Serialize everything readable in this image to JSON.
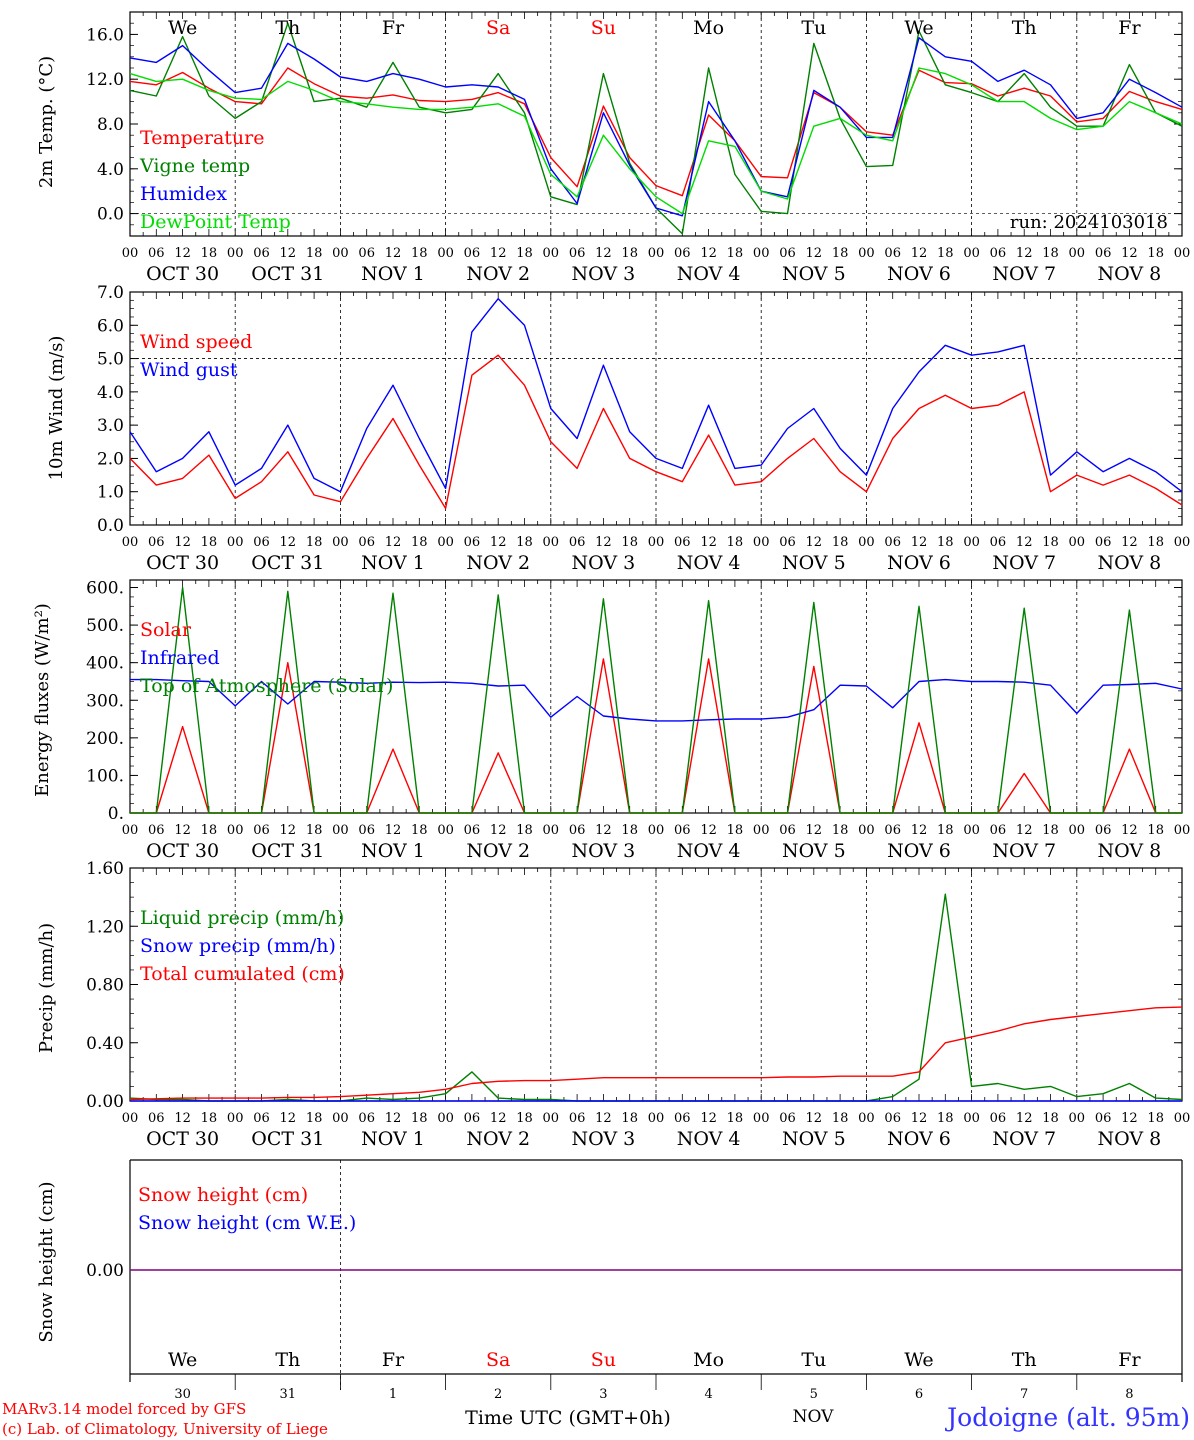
{
  "panel1": {
    "ylabel": "2m Temp. (°C)",
    "yticks": [
      "16.0",
      "12.0",
      "8.0",
      "4.0",
      "0.0"
    ],
    "days": [
      "We",
      "Th",
      "Fr",
      "Sa",
      "Su",
      "Mo",
      "Tu",
      "We",
      "Th",
      "Fr"
    ],
    "legend": [
      "Temperature",
      "Vigne temp",
      "Humidex",
      "DewPoint Temp"
    ],
    "run": "run: 2024103018"
  },
  "panel2": {
    "ylabel": "10m Wind (m/s)",
    "yticks": [
      "7.0",
      "6.0",
      "5.0",
      "4.0",
      "3.0",
      "2.0",
      "1.0",
      "0.0"
    ],
    "legend": [
      "Wind speed",
      "Wind gust"
    ]
  },
  "panel3": {
    "ylabel": "Energy fluxes (W/m²)",
    "yticks": [
      "600.",
      "500.",
      "400.",
      "300.",
      "200.",
      "100.",
      "0."
    ],
    "legend": [
      "Solar",
      "Infrared",
      "Top of Atmosphere (Solar)"
    ]
  },
  "panel4": {
    "ylabel": "Precip (mm/h)",
    "yticks": [
      "1.60",
      "1.20",
      "0.80",
      "0.40",
      "0.00"
    ],
    "legend": [
      "Liquid precip (mm/h)",
      "Snow precip (mm/h)",
      "Total cumulated (cm)"
    ]
  },
  "panel5": {
    "ylabel": "Snow height (cm)",
    "yticks": [
      "0.00"
    ],
    "legend": [
      "Snow height (cm)",
      "Snow height (cm W.E.)"
    ],
    "days": [
      "We",
      "Th",
      "Fr",
      "Sa",
      "Su",
      "Mo",
      "Tu",
      "We",
      "Th",
      "Fr"
    ],
    "daynums": [
      "30",
      "31",
      "1",
      "2",
      "3",
      "4",
      "5",
      "6",
      "7",
      "8"
    ]
  },
  "xaxis": {
    "hours": [
      "00",
      "06",
      "12",
      "18"
    ],
    "dates": [
      "OCT 30",
      "OCT 31",
      "NOV 1",
      "NOV 2",
      "NOV 3",
      "NOV 4",
      "NOV 5",
      "NOV 6",
      "NOV 7",
      "NOV 8"
    ],
    "last_hour": "00"
  },
  "footer": {
    "credit1": "MARv3.14 model forced by GFS",
    "credit2": "(c) Lab. of Climatology, University of Liege",
    "time_label": "Time UTC (GMT+0h)",
    "month": "NOV",
    "station": "Jodoigne (alt. 95m)"
  },
  "colors": {
    "red": "#ff0000",
    "green": "#008000",
    "blue": "#0000ff",
    "lightgreen": "#00dd00",
    "weekend": "#ff0000",
    "station": "#3333ff",
    "purple": "#800080"
  },
  "chart_data": [
    {
      "type": "line",
      "title": "",
      "ylabel": "2m Temp. (°C)",
      "ylim": [
        -2,
        18
      ],
      "x": [
        0,
        6,
        12,
        18,
        24,
        30,
        36,
        42,
        48,
        54,
        60,
        66,
        72,
        78,
        84,
        90,
        96,
        102,
        108,
        114,
        120,
        126,
        132,
        138,
        144,
        150,
        156,
        162,
        168,
        174,
        180,
        186,
        192,
        198,
        204,
        210,
        216,
        222,
        228,
        234,
        240
      ],
      "series": [
        {
          "name": "Temperature",
          "color": "#ff0000",
          "values": [
            11.8,
            11.5,
            12.6,
            11.2,
            10.0,
            9.8,
            13.0,
            11.6,
            10.5,
            10.3,
            10.6,
            10.1,
            10.0,
            10.2,
            10.8,
            9.8,
            5.0,
            2.4,
            9.6,
            5.0,
            2.5,
            1.6,
            8.8,
            6.5,
            3.3,
            3.2,
            10.8,
            9.5,
            7.3,
            7.0,
            12.8,
            11.7,
            11.6,
            10.5,
            11.2,
            10.5,
            8.2,
            8.5,
            10.9,
            10.0,
            9.3
          ]
        },
        {
          "name": "Vigne temp",
          "color": "#008000",
          "values": [
            11.0,
            10.5,
            15.8,
            10.5,
            8.5,
            10.0,
            17.0,
            10.0,
            10.3,
            9.5,
            13.5,
            9.5,
            9.0,
            9.3,
            12.5,
            9.0,
            1.5,
            0.8,
            12.5,
            4.5,
            0.5,
            -1.8,
            13.0,
            3.5,
            0.2,
            0.0,
            15.2,
            8.5,
            4.2,
            4.3,
            16.3,
            11.5,
            10.8,
            10.0,
            12.5,
            9.5,
            7.8,
            7.8,
            13.3,
            9.0,
            7.8
          ]
        },
        {
          "name": "Humidex",
          "color": "#0000ff",
          "values": [
            13.9,
            13.5,
            15.0,
            12.8,
            10.8,
            11.2,
            15.2,
            13.8,
            12.2,
            11.8,
            12.5,
            12.0,
            11.3,
            11.5,
            11.3,
            10.2,
            4.0,
            0.9,
            9.0,
            4.3,
            0.5,
            -0.2,
            10.0,
            6.5,
            2.0,
            1.5,
            11.0,
            9.5,
            6.8,
            6.8,
            15.7,
            14.0,
            13.6,
            11.8,
            12.8,
            11.5,
            8.5,
            9.0,
            12.0,
            10.8,
            9.5
          ]
        },
        {
          "name": "DewPoint Temp",
          "color": "#00dd00",
          "values": [
            12.5,
            11.8,
            12.0,
            11.0,
            10.3,
            10.2,
            11.8,
            11.0,
            10.0,
            9.8,
            9.5,
            9.3,
            9.3,
            9.5,
            9.8,
            8.7,
            3.5,
            1.5,
            7.0,
            4.0,
            1.5,
            0.0,
            6.5,
            6.0,
            2.0,
            1.3,
            7.8,
            8.5,
            7.0,
            6.5,
            13.0,
            12.5,
            11.5,
            10.0,
            10.0,
            8.5,
            7.5,
            7.8,
            10.0,
            9.0,
            8.0
          ]
        }
      ]
    },
    {
      "type": "line",
      "title": "",
      "ylabel": "10m Wind (m/s)",
      "ylim": [
        0,
        7
      ],
      "x": [
        0,
        6,
        12,
        18,
        24,
        30,
        36,
        42,
        48,
        54,
        60,
        66,
        72,
        78,
        84,
        90,
        96,
        102,
        108,
        114,
        120,
        126,
        132,
        138,
        144,
        150,
        156,
        162,
        168,
        174,
        180,
        186,
        192,
        198,
        204,
        210,
        216,
        222,
        228,
        234,
        240
      ],
      "series": [
        {
          "name": "Wind speed",
          "color": "#ff0000",
          "values": [
            2.0,
            1.2,
            1.4,
            2.1,
            0.8,
            1.3,
            2.2,
            0.9,
            0.7,
            2.0,
            3.2,
            1.8,
            0.5,
            4.5,
            5.1,
            4.2,
            2.5,
            1.7,
            3.5,
            2.0,
            1.6,
            1.3,
            2.7,
            1.2,
            1.3,
            2.0,
            2.6,
            1.6,
            1.0,
            2.6,
            3.5,
            3.9,
            3.5,
            3.6,
            4.0,
            1.0,
            1.5,
            1.2,
            1.5,
            1.1,
            0.6
          ]
        },
        {
          "name": "Wind gust",
          "color": "#0000ff",
          "values": [
            2.8,
            1.6,
            2.0,
            2.8,
            1.2,
            1.7,
            3.0,
            1.4,
            1.0,
            2.9,
            4.2,
            2.6,
            1.1,
            5.8,
            6.8,
            6.0,
            3.5,
            2.6,
            4.8,
            2.8,
            2.0,
            1.7,
            3.6,
            1.7,
            1.8,
            2.9,
            3.5,
            2.3,
            1.5,
            3.5,
            4.6,
            5.4,
            5.1,
            5.2,
            5.4,
            1.5,
            2.2,
            1.6,
            2.0,
            1.6,
            1.0
          ]
        }
      ]
    },
    {
      "type": "line",
      "title": "",
      "ylabel": "Energy fluxes (W/m²)",
      "ylim": [
        0,
        620
      ],
      "x": [
        0,
        6,
        12,
        18,
        24,
        30,
        36,
        42,
        48,
        54,
        60,
        66,
        72,
        78,
        84,
        90,
        96,
        102,
        108,
        114,
        120,
        126,
        132,
        138,
        144,
        150,
        156,
        162,
        168,
        174,
        180,
        186,
        192,
        198,
        204,
        210,
        216,
        222,
        228,
        234,
        240
      ],
      "series": [
        {
          "name": "Solar",
          "color": "#ff0000",
          "values": [
            0,
            0,
            230,
            0,
            0,
            0,
            400,
            0,
            0,
            0,
            170,
            0,
            0,
            0,
            160,
            0,
            0,
            0,
            410,
            0,
            0,
            0,
            410,
            0,
            0,
            0,
            390,
            0,
            0,
            0,
            240,
            0,
            0,
            0,
            105,
            0,
            0,
            0,
            170,
            0,
            0
          ]
        },
        {
          "name": "Infrared",
          "color": "#0000ff",
          "values": [
            355,
            355,
            352,
            350,
            285,
            350,
            290,
            350,
            348,
            345,
            348,
            347,
            348,
            345,
            338,
            340,
            255,
            310,
            258,
            250,
            245,
            245,
            248,
            250,
            250,
            255,
            275,
            340,
            338,
            280,
            350,
            355,
            350,
            350,
            348,
            340,
            265,
            340,
            342,
            345,
            330
          ]
        },
        {
          "name": "Top of Atmosphere (Solar)",
          "color": "#008000",
          "values": [
            0,
            0,
            600,
            0,
            0,
            0,
            590,
            0,
            0,
            0,
            585,
            0,
            0,
            0,
            580,
            0,
            0,
            0,
            570,
            0,
            0,
            0,
            565,
            0,
            0,
            0,
            560,
            0,
            0,
            0,
            550,
            0,
            0,
            0,
            545,
            0,
            0,
            0,
            540,
            0,
            0
          ]
        }
      ]
    },
    {
      "type": "line",
      "title": "",
      "ylabel": "Precip (mm/h)",
      "ylim": [
        0,
        1.6
      ],
      "x": [
        0,
        6,
        12,
        18,
        24,
        30,
        36,
        42,
        48,
        54,
        60,
        66,
        72,
        78,
        84,
        90,
        96,
        102,
        108,
        114,
        120,
        126,
        132,
        138,
        144,
        150,
        156,
        162,
        168,
        174,
        180,
        186,
        192,
        198,
        204,
        210,
        216,
        222,
        228,
        234,
        240
      ],
      "series": [
        {
          "name": "Liquid precip (mm/h)",
          "color": "#008000",
          "values": [
            0.02,
            0.01,
            0.01,
            0,
            0,
            0,
            0.01,
            0,
            0,
            0.02,
            0.01,
            0.02,
            0.05,
            0.2,
            0.02,
            0.01,
            0.01,
            0,
            0,
            0,
            0,
            0,
            0,
            0,
            0,
            0,
            0,
            0,
            0,
            0.03,
            0.15,
            1.42,
            0.1,
            0.12,
            0.08,
            0.1,
            0.03,
            0.05,
            0.12,
            0.02,
            0.01
          ]
        },
        {
          "name": "Snow precip (mm/h)",
          "color": "#0000ff",
          "values": [
            0,
            0,
            0,
            0,
            0,
            0,
            0,
            0,
            0,
            0,
            0,
            0,
            0,
            0,
            0,
            0,
            0,
            0,
            0,
            0,
            0,
            0,
            0,
            0,
            0,
            0,
            0,
            0,
            0,
            0,
            0,
            0,
            0,
            0,
            0,
            0,
            0,
            0,
            0,
            0,
            0
          ]
        },
        {
          "name": "Total cumulated (cm)",
          "color": "#ff0000",
          "values": [
            0.01,
            0.015,
            0.02,
            0.02,
            0.02,
            0.02,
            0.025,
            0.025,
            0.03,
            0.04,
            0.05,
            0.06,
            0.08,
            0.12,
            0.135,
            0.14,
            0.14,
            0.15,
            0.16,
            0.16,
            0.16,
            0.16,
            0.16,
            0.16,
            0.16,
            0.165,
            0.165,
            0.17,
            0.17,
            0.17,
            0.2,
            0.4,
            0.44,
            0.48,
            0.53,
            0.56,
            0.58,
            0.6,
            0.62,
            0.64,
            0.645
          ]
        }
      ]
    },
    {
      "type": "line",
      "title": "",
      "ylabel": "Snow height (cm)",
      "ylim": [
        -1,
        1
      ],
      "x": [
        0,
        240
      ],
      "series": [
        {
          "name": "Snow height (cm)",
          "color": "#ff0000",
          "values": [
            0,
            0
          ]
        },
        {
          "name": "Snow height (cm W.E.)",
          "color": "#0000ff",
          "values": [
            0,
            0
          ]
        }
      ]
    }
  ]
}
